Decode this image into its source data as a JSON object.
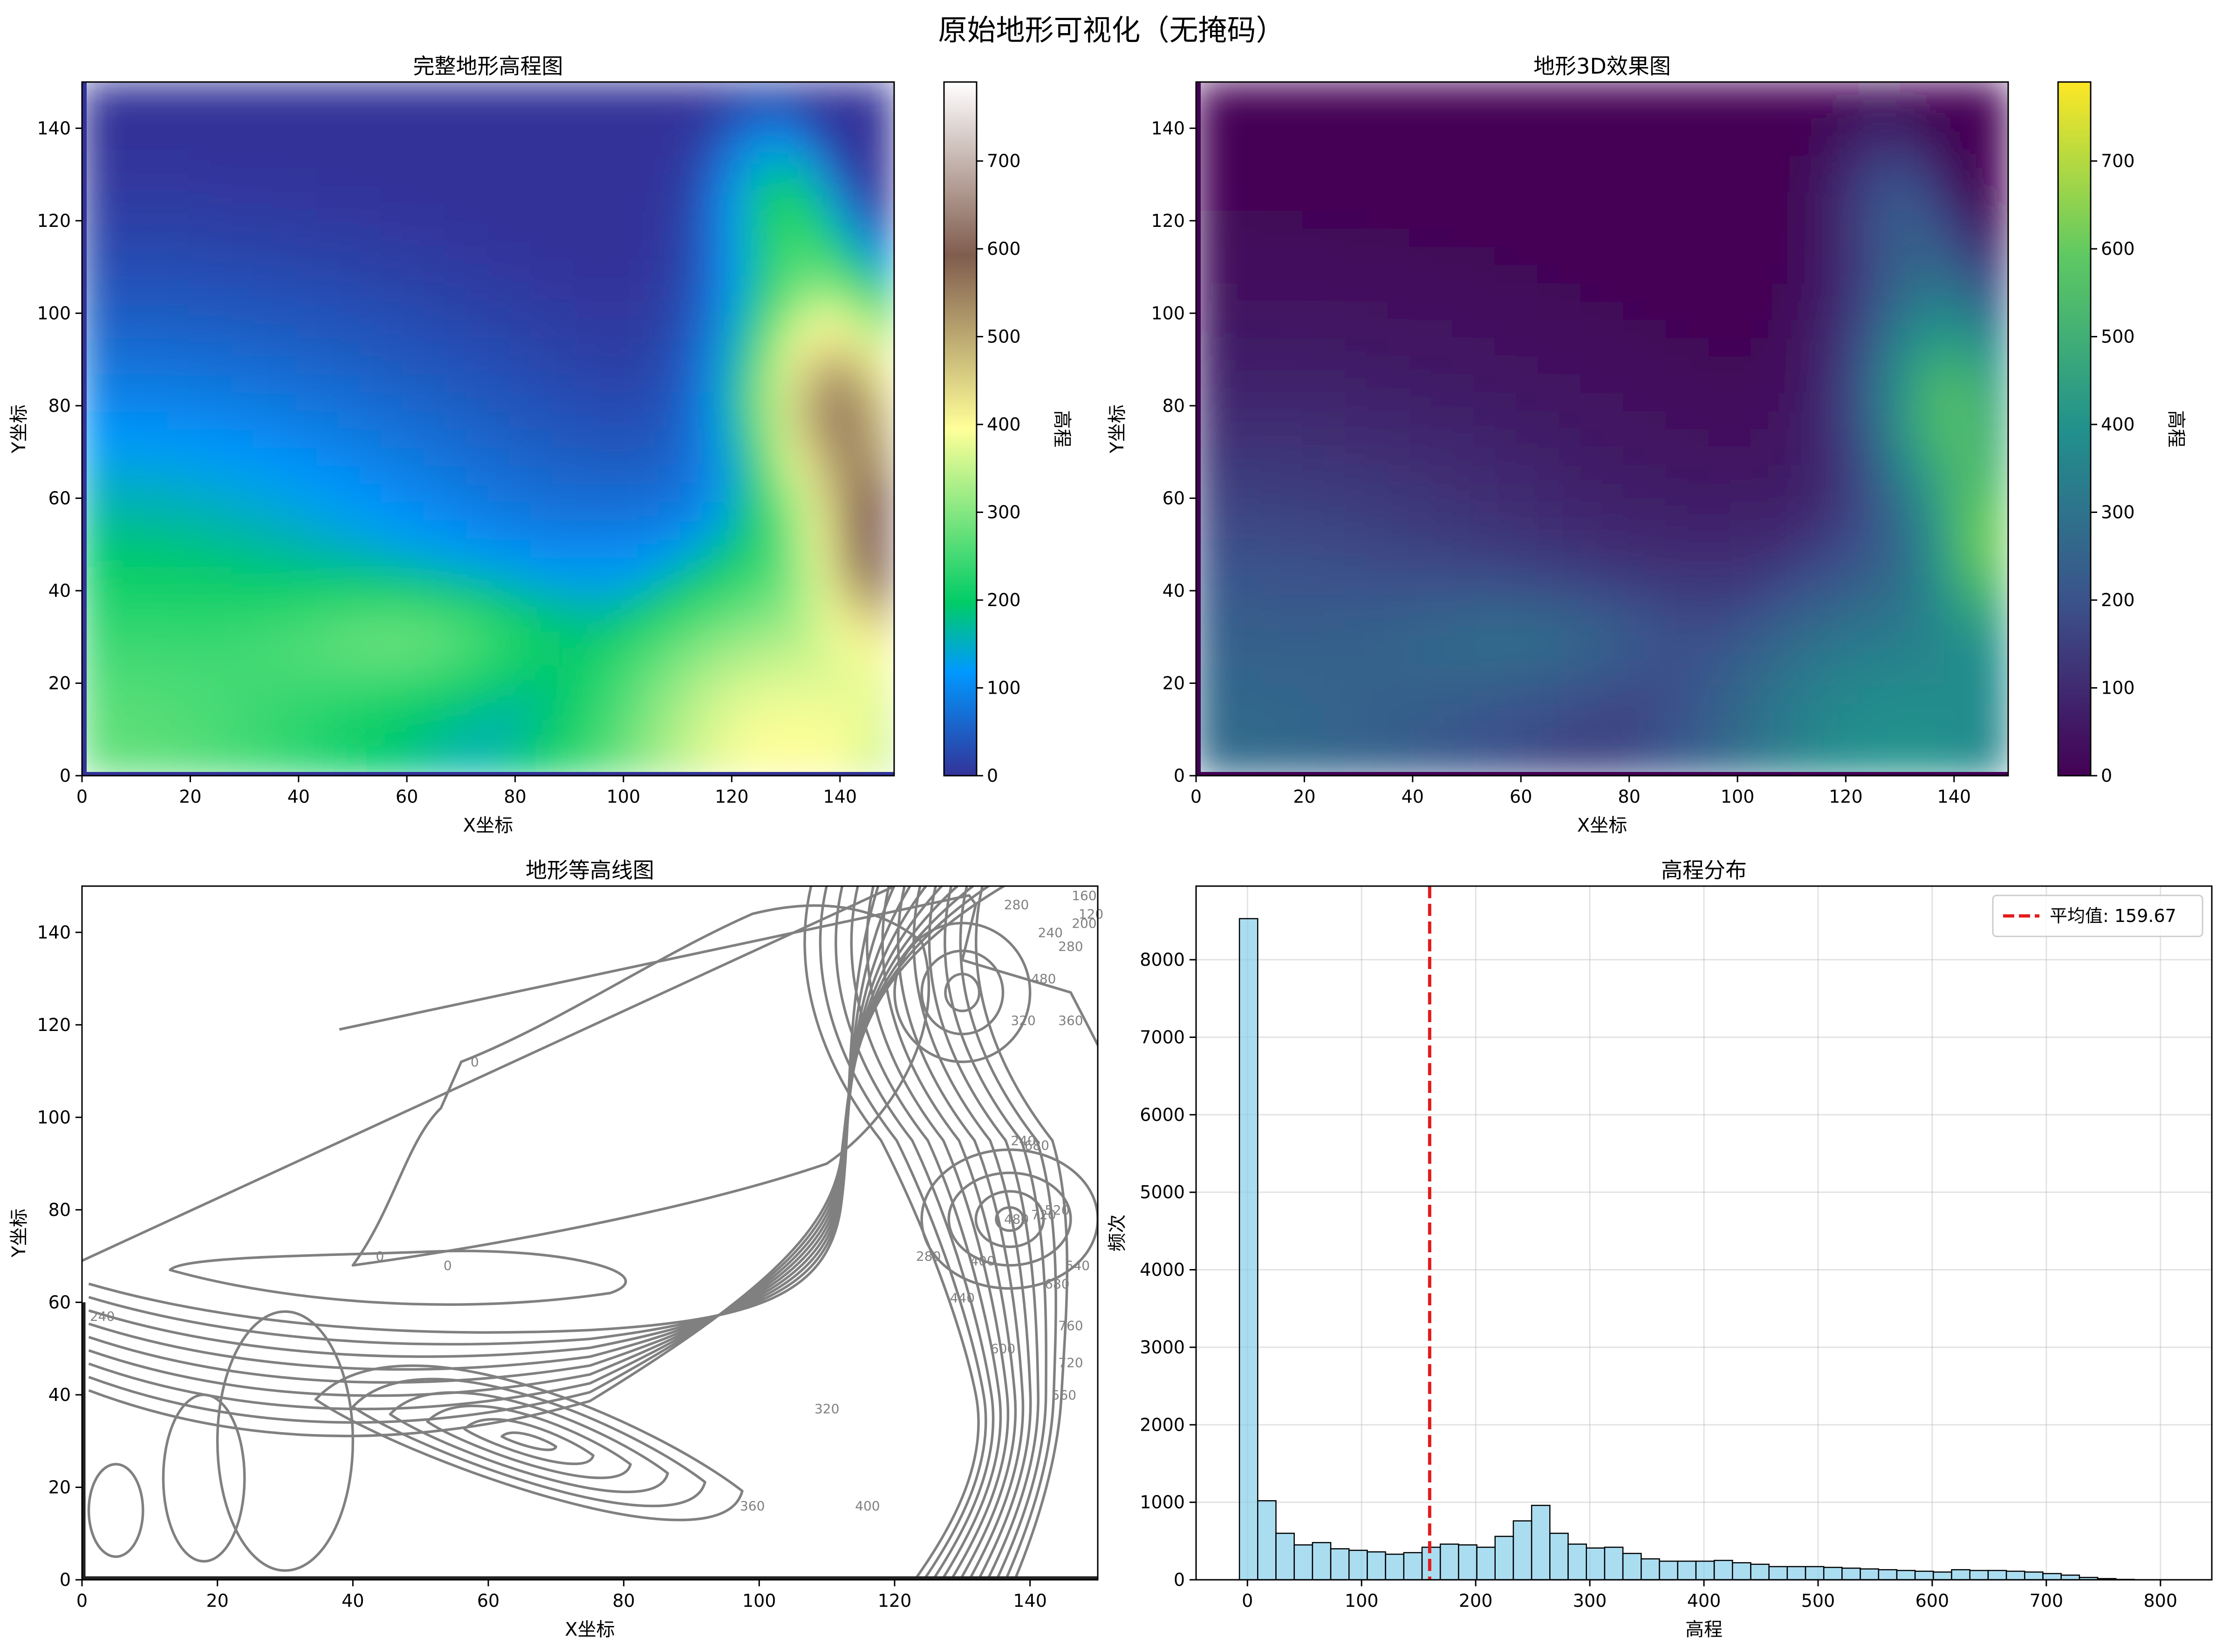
{
  "suptitle": "原始地形可视化（无掩码）",
  "chart_data": [
    {
      "type": "heatmap",
      "title": "完整地形高程图",
      "xlabel": "X坐标",
      "ylabel": "Y坐标",
      "colormap": "terrain",
      "xlim": [
        0,
        150
      ],
      "ylim": [
        0,
        150
      ],
      "xticks": [
        "0",
        "20",
        "40",
        "60",
        "80",
        "100",
        "120",
        "140"
      ],
      "yticks": [
        "0",
        "20",
        "40",
        "60",
        "80",
        "100",
        "120",
        "140"
      ],
      "colorbar": {
        "label": "高程",
        "range": [
          0,
          790
        ],
        "ticks": [
          "0",
          "100",
          "200",
          "300",
          "400",
          "500",
          "600",
          "700"
        ]
      }
    },
    {
      "type": "heatmap",
      "title": "地形3D效果图",
      "xlabel": "X坐标",
      "ylabel": "Y坐标",
      "colormap": "viridis",
      "xlim": [
        0,
        150
      ],
      "ylim": [
        0,
        150
      ],
      "xticks": [
        "0",
        "20",
        "40",
        "60",
        "80",
        "100",
        "120",
        "140"
      ],
      "yticks": [
        "0",
        "20",
        "40",
        "60",
        "80",
        "100",
        "120",
        "140"
      ],
      "colorbar": {
        "label": "高程",
        "range": [
          0,
          790
        ],
        "ticks": [
          "0",
          "100",
          "200",
          "300",
          "400",
          "500",
          "600",
          "700"
        ]
      }
    },
    {
      "type": "contour",
      "title": "地形等高线图",
      "xlabel": "X坐标",
      "ylabel": "Y坐标",
      "xlim": [
        0,
        150
      ],
      "ylim": [
        0,
        150
      ],
      "xticks": [
        "0",
        "20",
        "40",
        "60",
        "80",
        "100",
        "120",
        "140"
      ],
      "yticks": [
        "0",
        "20",
        "40",
        "60",
        "80",
        "100",
        "120",
        "140"
      ],
      "line_color": "#808080",
      "contour_levels": [
        "0",
        "0",
        "0",
        "240",
        "320",
        "360",
        "400",
        "280",
        "320",
        "240",
        "400",
        "480",
        "520",
        "280",
        "440",
        "600",
        "680",
        "720",
        "680",
        "640",
        "760",
        "720",
        "560",
        "480",
        "360",
        "240",
        "280",
        "200",
        "160",
        "120"
      ]
    },
    {
      "type": "bar",
      "title": "高程分布",
      "xlabel": "高程",
      "ylabel": "频次",
      "xlim": [
        -45,
        845
      ],
      "ylim": [
        0,
        8950
      ],
      "xticks": [
        "0",
        "100",
        "200",
        "300",
        "400",
        "500",
        "600",
        "700",
        "800"
      ],
      "yticks": [
        "0",
        "1000",
        "2000",
        "3000",
        "4000",
        "5000",
        "6000",
        "7000",
        "8000"
      ],
      "grid": true,
      "legend_position": "top-right",
      "bar_color": "#87ceeb",
      "bin_start": -7,
      "bin_width": 16,
      "values": [
        8530,
        1020,
        600,
        450,
        480,
        400,
        380,
        360,
        330,
        350,
        420,
        460,
        450,
        420,
        560,
        760,
        960,
        600,
        460,
        410,
        420,
        340,
        270,
        240,
        240,
        240,
        250,
        220,
        200,
        170,
        170,
        170,
        160,
        150,
        140,
        130,
        120,
        110,
        100,
        130,
        120,
        120,
        110,
        100,
        80,
        60,
        30,
        15,
        5
      ],
      "mean": {
        "value": 159.67,
        "label": "平均值: 159.67",
        "color": "#e41a1c"
      }
    }
  ]
}
